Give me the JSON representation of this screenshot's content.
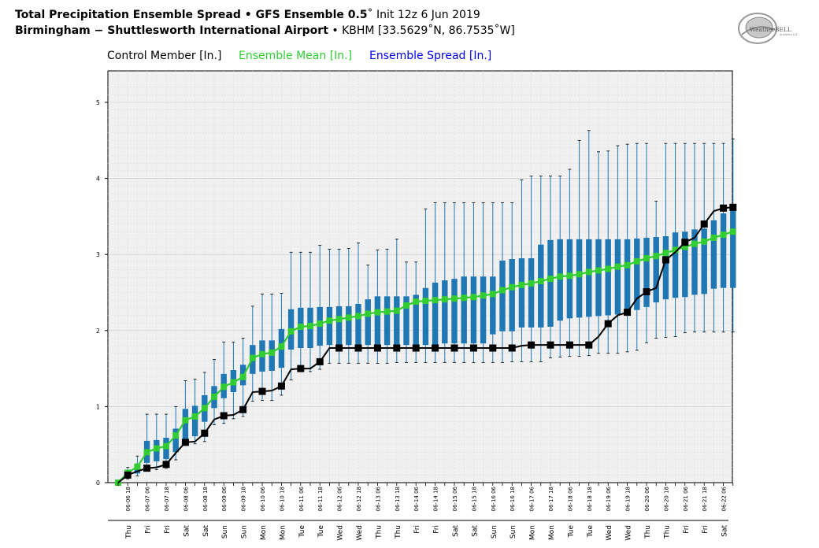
{
  "header": {
    "line1_bold": "Total Precipitation Ensemble Spread • GFS Ensemble 0.5",
    "line1_deg": "˚",
    "line1_rest": " Init 12z 6 Jun 2019",
    "line2_bold": "Birmingham − Shuttlesworth International Airport",
    "line2_rest": " • KBHM [33.5629˚N, 86.7535˚W]"
  },
  "logo": {
    "text": "WeatherBELL",
    "sub": "Analytics LLC"
  },
  "colors": {
    "control": "#000000",
    "mean": "#33cc33",
    "spread": "#1f77b4",
    "mean_text": "#33cc33",
    "spread_text": "#0000ee",
    "plot_bg": "#f0f0f0"
  },
  "chart_data": {
    "type": "box",
    "title": "Total Precipitation Ensemble Spread",
    "ylim": [
      0,
      5.2
    ],
    "yticks": [
      0,
      1,
      2,
      3,
      4,
      5
    ],
    "grid": true,
    "legend": [
      {
        "name": "Control Member [In.]",
        "color": "#000000"
      },
      {
        "name": "Ensemble Mean [In.]",
        "color": "#33cc33"
      },
      {
        "name": "Ensemble Spread [In.]",
        "color": "#0000ee"
      }
    ],
    "x_tick_labels": [
      "06-06 18",
      "06-07 06",
      "06-07 18",
      "06-08 06",
      "06-08 18",
      "06-09 06",
      "06-09 18",
      "06-10 06",
      "06-10 18",
      "06-11 06",
      "06-11 18",
      "06-12 06",
      "06-12 18",
      "06-13 06",
      "06-13 18",
      "06-14 06",
      "06-14 18",
      "06-15 06",
      "06-15 18",
      "06-16 06",
      "06-16 18",
      "06-17 06",
      "06-17 18",
      "06-18 06",
      "06-18 18",
      "06-19 06",
      "06-19 18",
      "06-20 06",
      "06-20 18",
      "06-21 06",
      "06-21 18",
      "06-22 06"
    ],
    "day_labels": [
      "Thu",
      "Fri",
      "Fri",
      "Sat",
      "Sat",
      "Sun",
      "Sun",
      "Mon",
      "Mon",
      "Tue",
      "Tue",
      "Wed",
      "Wed",
      "Thu",
      "Thu",
      "Fri",
      "Fri",
      "Sat",
      "Sat",
      "Sun",
      "Sun",
      "Mon",
      "Mon",
      "Tue",
      "Tue",
      "Wed",
      "Wed",
      "Thu",
      "Thu",
      "Fri",
      "Fri",
      "Sat"
    ],
    "control": [
      0.0,
      0.1,
      0.15,
      0.19,
      0.2,
      0.24,
      0.39,
      0.53,
      0.54,
      0.65,
      0.83,
      0.88,
      0.89,
      0.96,
      1.19,
      1.2,
      1.21,
      1.27,
      1.49,
      1.5,
      1.5,
      1.59,
      1.77,
      1.77,
      1.77,
      1.77,
      1.77,
      1.77,
      1.77,
      1.77,
      1.77,
      1.77,
      1.77,
      1.77,
      1.77,
      1.77,
      1.77,
      1.77,
      1.77,
      1.77,
      1.77,
      1.77,
      1.8,
      1.81,
      1.81,
      1.81,
      1.81,
      1.81,
      1.81,
      1.81,
      1.92,
      2.09,
      2.2,
      2.24,
      2.42,
      2.51,
      2.56,
      2.93,
      3.03,
      3.16,
      3.22,
      3.4,
      3.57,
      3.61,
      3.62
    ],
    "mean": [
      0.0,
      0.13,
      0.21,
      0.4,
      0.45,
      0.48,
      0.62,
      0.82,
      0.87,
      0.98,
      1.13,
      1.26,
      1.32,
      1.39,
      1.64,
      1.69,
      1.71,
      1.79,
      1.99,
      2.05,
      2.06,
      2.09,
      2.13,
      2.15,
      2.17,
      2.19,
      2.22,
      2.24,
      2.25,
      2.26,
      2.33,
      2.38,
      2.39,
      2.4,
      2.41,
      2.42,
      2.43,
      2.44,
      2.46,
      2.48,
      2.53,
      2.57,
      2.6,
      2.62,
      2.65,
      2.68,
      2.71,
      2.72,
      2.74,
      2.77,
      2.79,
      2.81,
      2.84,
      2.86,
      2.91,
      2.95,
      2.98,
      3.02,
      3.06,
      3.1,
      3.14,
      3.17,
      3.22,
      3.26,
      3.3
    ],
    "q1": [
      0,
      0.09,
      0.12,
      0.26,
      0.28,
      0.31,
      0.4,
      0.55,
      0.61,
      0.8,
      0.98,
      1.11,
      1.19,
      1.28,
      1.43,
      1.46,
      1.47,
      1.51,
      1.75,
      1.77,
      1.77,
      1.8,
      1.81,
      1.81,
      1.81,
      1.81,
      1.81,
      1.81,
      1.81,
      1.81,
      1.81,
      1.81,
      1.81,
      1.81,
      1.83,
      1.83,
      1.83,
      1.83,
      1.83,
      1.95,
      1.99,
      1.99,
      2.04,
      2.04,
      2.04,
      2.05,
      2.13,
      2.16,
      2.17,
      2.18,
      2.19,
      2.2,
      2.21,
      2.23,
      2.27,
      2.31,
      2.37,
      2.41,
      2.43,
      2.44,
      2.47,
      2.48,
      2.55,
      2.56,
      2.56
    ],
    "q3": [
      0,
      0.12,
      0.25,
      0.55,
      0.56,
      0.59,
      0.71,
      0.97,
      1.01,
      1.15,
      1.27,
      1.43,
      1.48,
      1.55,
      1.81,
      1.87,
      1.87,
      2.02,
      2.28,
      2.3,
      2.3,
      2.31,
      2.31,
      2.32,
      2.32,
      2.35,
      2.41,
      2.45,
      2.45,
      2.45,
      2.45,
      2.47,
      2.56,
      2.63,
      2.66,
      2.68,
      2.71,
      2.71,
      2.71,
      2.71,
      2.92,
      2.94,
      2.95,
      2.95,
      3.13,
      3.19,
      3.2,
      3.2,
      3.2,
      3.2,
      3.2,
      3.2,
      3.2,
      3.2,
      3.21,
      3.22,
      3.23,
      3.24,
      3.29,
      3.3,
      3.33,
      3.34,
      3.45,
      3.54,
      3.66
    ],
    "whisker_low": [
      0,
      0.05,
      0.09,
      0.17,
      0.17,
      0.19,
      0.3,
      0.51,
      0.51,
      0.54,
      0.76,
      0.78,
      0.84,
      0.87,
      1.07,
      1.08,
      1.08,
      1.15,
      1.35,
      1.46,
      1.46,
      1.49,
      1.57,
      1.57,
      1.57,
      1.57,
      1.57,
      1.57,
      1.57,
      1.58,
      1.58,
      1.58,
      1.58,
      1.58,
      1.58,
      1.58,
      1.58,
      1.58,
      1.58,
      1.58,
      1.58,
      1.59,
      1.59,
      1.59,
      1.59,
      1.64,
      1.65,
      1.66,
      1.66,
      1.67,
      1.7,
      1.7,
      1.7,
      1.72,
      1.74,
      1.84,
      1.9,
      1.91,
      1.92,
      1.97,
      1.98,
      1.98,
      1.98,
      1.98,
      1.98
    ],
    "whisker_high": [
      0,
      0.2,
      0.35,
      0.9,
      0.9,
      0.9,
      1.0,
      1.34,
      1.36,
      1.45,
      1.62,
      1.85,
      1.85,
      1.9,
      2.32,
      2.48,
      2.48,
      2.49,
      3.03,
      3.03,
      3.03,
      3.12,
      3.07,
      3.07,
      3.08,
      3.15,
      2.86,
      3.06,
      3.07,
      3.2,
      2.9,
      2.9,
      3.6,
      3.68,
      3.68,
      3.68,
      3.68,
      3.68,
      3.68,
      3.68,
      3.68,
      3.68,
      3.98,
      4.03,
      4.03,
      4.03,
      4.03,
      4.12,
      4.5,
      4.63,
      4.35,
      4.36,
      4.43,
      4.45,
      4.46,
      4.46,
      3.7,
      4.46,
      4.46,
      4.46,
      4.46,
      4.46,
      4.46,
      4.46,
      4.52
    ]
  }
}
